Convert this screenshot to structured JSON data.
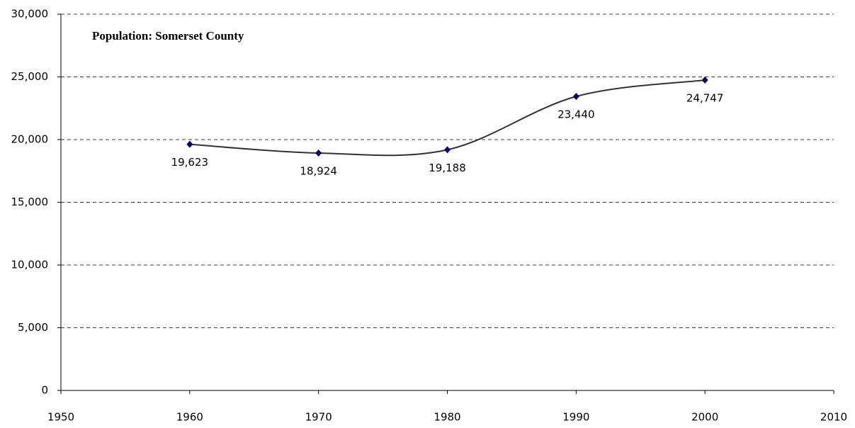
{
  "chart_data": {
    "type": "line",
    "title": "Population: Somerset County",
    "x": [
      1960,
      1970,
      1980,
      1990,
      2000
    ],
    "values": [
      19623,
      18924,
      19188,
      23440,
      24747
    ],
    "value_labels": [
      "19,623",
      "18,924",
      "19,188",
      "23,440",
      "24,747"
    ],
    "line_color": "#333333",
    "marker_color": "#000066",
    "smooth": true,
    "xlim": [
      1950,
      2010
    ],
    "xticks": [
      1950,
      1960,
      1970,
      1980,
      1990,
      2000,
      2010
    ],
    "ylim": [
      0,
      30000
    ],
    "yticks": [
      0,
      {
        "value": 5000,
        "label": "5,000"
      },
      {
        "value": 10000,
        "label": "10,000"
      },
      {
        "value": 15000,
        "label": "15,000"
      },
      {
        "value": 20000,
        "label": "20,000"
      },
      {
        "value": 25000,
        "label": "25,000"
      },
      {
        "value": 30000,
        "label": "30,000"
      }
    ],
    "grid": true
  }
}
